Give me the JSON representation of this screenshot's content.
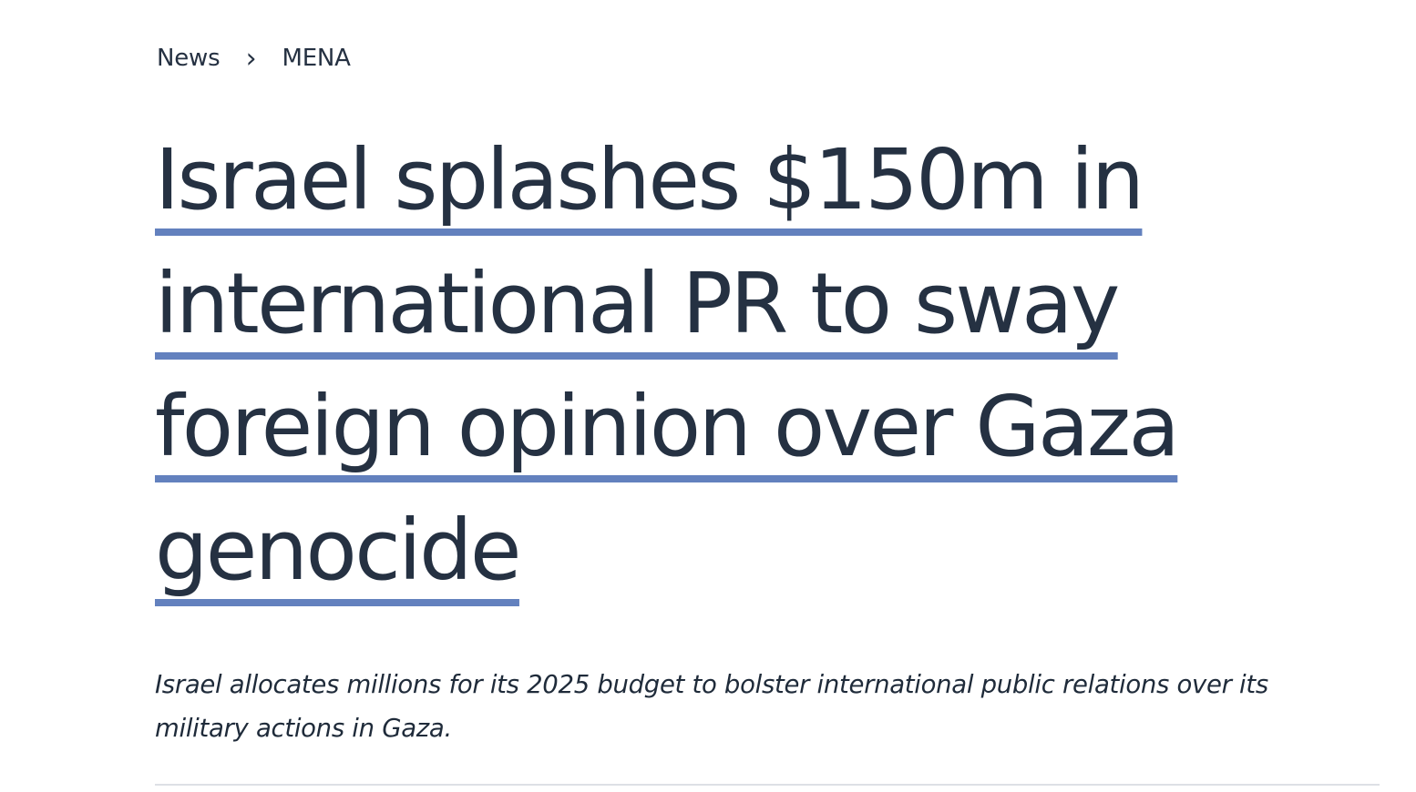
{
  "breadcrumb": {
    "items": [
      "News",
      "MENA"
    ],
    "separator": "›"
  },
  "article": {
    "headline": "Israel splashes $150m in international PR to sway foreign opinion over Gaza genocide",
    "standfirst": "Israel allocates millions for its 2025 budget to bolster international public relations over its military actions in Gaza."
  },
  "colors": {
    "text": "#253142",
    "underline_accent": "#6381be",
    "divider": "#dde0e5",
    "background": "#ffffff"
  }
}
